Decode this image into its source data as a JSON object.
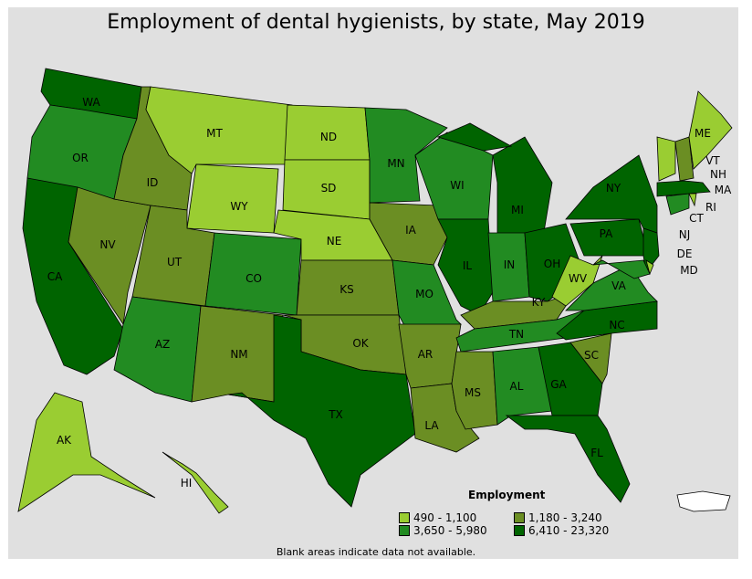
{
  "title": "Employment of dental hygienists, by state, May 2019",
  "note": "Blank areas indicate data not available.",
  "legend": {
    "title": "Employment",
    "items": [
      {
        "label": "490 - 1,100",
        "color": "#9acd32"
      },
      {
        "label": "1,180 - 3,240",
        "color": "#6b8e23"
      },
      {
        "label": "3,650 - 5,980",
        "color": "#228b22"
      },
      {
        "label": "6,410 - 23,320",
        "color": "#006400"
      }
    ]
  },
  "states": [
    {
      "id": "WA",
      "cat": 3
    },
    {
      "id": "OR",
      "cat": 2
    },
    {
      "id": "CA",
      "cat": 3
    },
    {
      "id": "NV",
      "cat": 1
    },
    {
      "id": "ID",
      "cat": 1
    },
    {
      "id": "MT",
      "cat": 0
    },
    {
      "id": "WY",
      "cat": 0
    },
    {
      "id": "UT",
      "cat": 1
    },
    {
      "id": "CO",
      "cat": 2
    },
    {
      "id": "AZ",
      "cat": 2
    },
    {
      "id": "NM",
      "cat": 1
    },
    {
      "id": "ND",
      "cat": 0
    },
    {
      "id": "SD",
      "cat": 0
    },
    {
      "id": "NE",
      "cat": 0
    },
    {
      "id": "KS",
      "cat": 1
    },
    {
      "id": "OK",
      "cat": 1
    },
    {
      "id": "TX",
      "cat": 3
    },
    {
      "id": "MN",
      "cat": 2
    },
    {
      "id": "IA",
      "cat": 1
    },
    {
      "id": "MO",
      "cat": 2
    },
    {
      "id": "AR",
      "cat": 1
    },
    {
      "id": "LA",
      "cat": 1
    },
    {
      "id": "WI",
      "cat": 2
    },
    {
      "id": "IL",
      "cat": 3
    },
    {
      "id": "MI",
      "cat": 3
    },
    {
      "id": "IN",
      "cat": 2
    },
    {
      "id": "OH",
      "cat": 3
    },
    {
      "id": "KY",
      "cat": 1
    },
    {
      "id": "TN",
      "cat": 2
    },
    {
      "id": "MS",
      "cat": 1
    },
    {
      "id": "AL",
      "cat": 2
    },
    {
      "id": "GA",
      "cat": 3
    },
    {
      "id": "FL",
      "cat": 3
    },
    {
      "id": "SC",
      "cat": 1
    },
    {
      "id": "NC",
      "cat": 3
    },
    {
      "id": "VA",
      "cat": 2
    },
    {
      "id": "WV",
      "cat": 0
    },
    {
      "id": "PA",
      "cat": 3
    },
    {
      "id": "NY",
      "cat": 3
    },
    {
      "id": "NJ",
      "cat": 3
    },
    {
      "id": "MD",
      "cat": 2
    },
    {
      "id": "DE",
      "cat": 0
    },
    {
      "id": "CT",
      "cat": 2
    },
    {
      "id": "RI",
      "cat": 0
    },
    {
      "id": "MA",
      "cat": 3
    },
    {
      "id": "VT",
      "cat": 0
    },
    {
      "id": "NH",
      "cat": 1
    },
    {
      "id": "ME",
      "cat": 0
    },
    {
      "id": "AK",
      "cat": 0
    },
    {
      "id": "HI",
      "cat": 0
    }
  ]
}
